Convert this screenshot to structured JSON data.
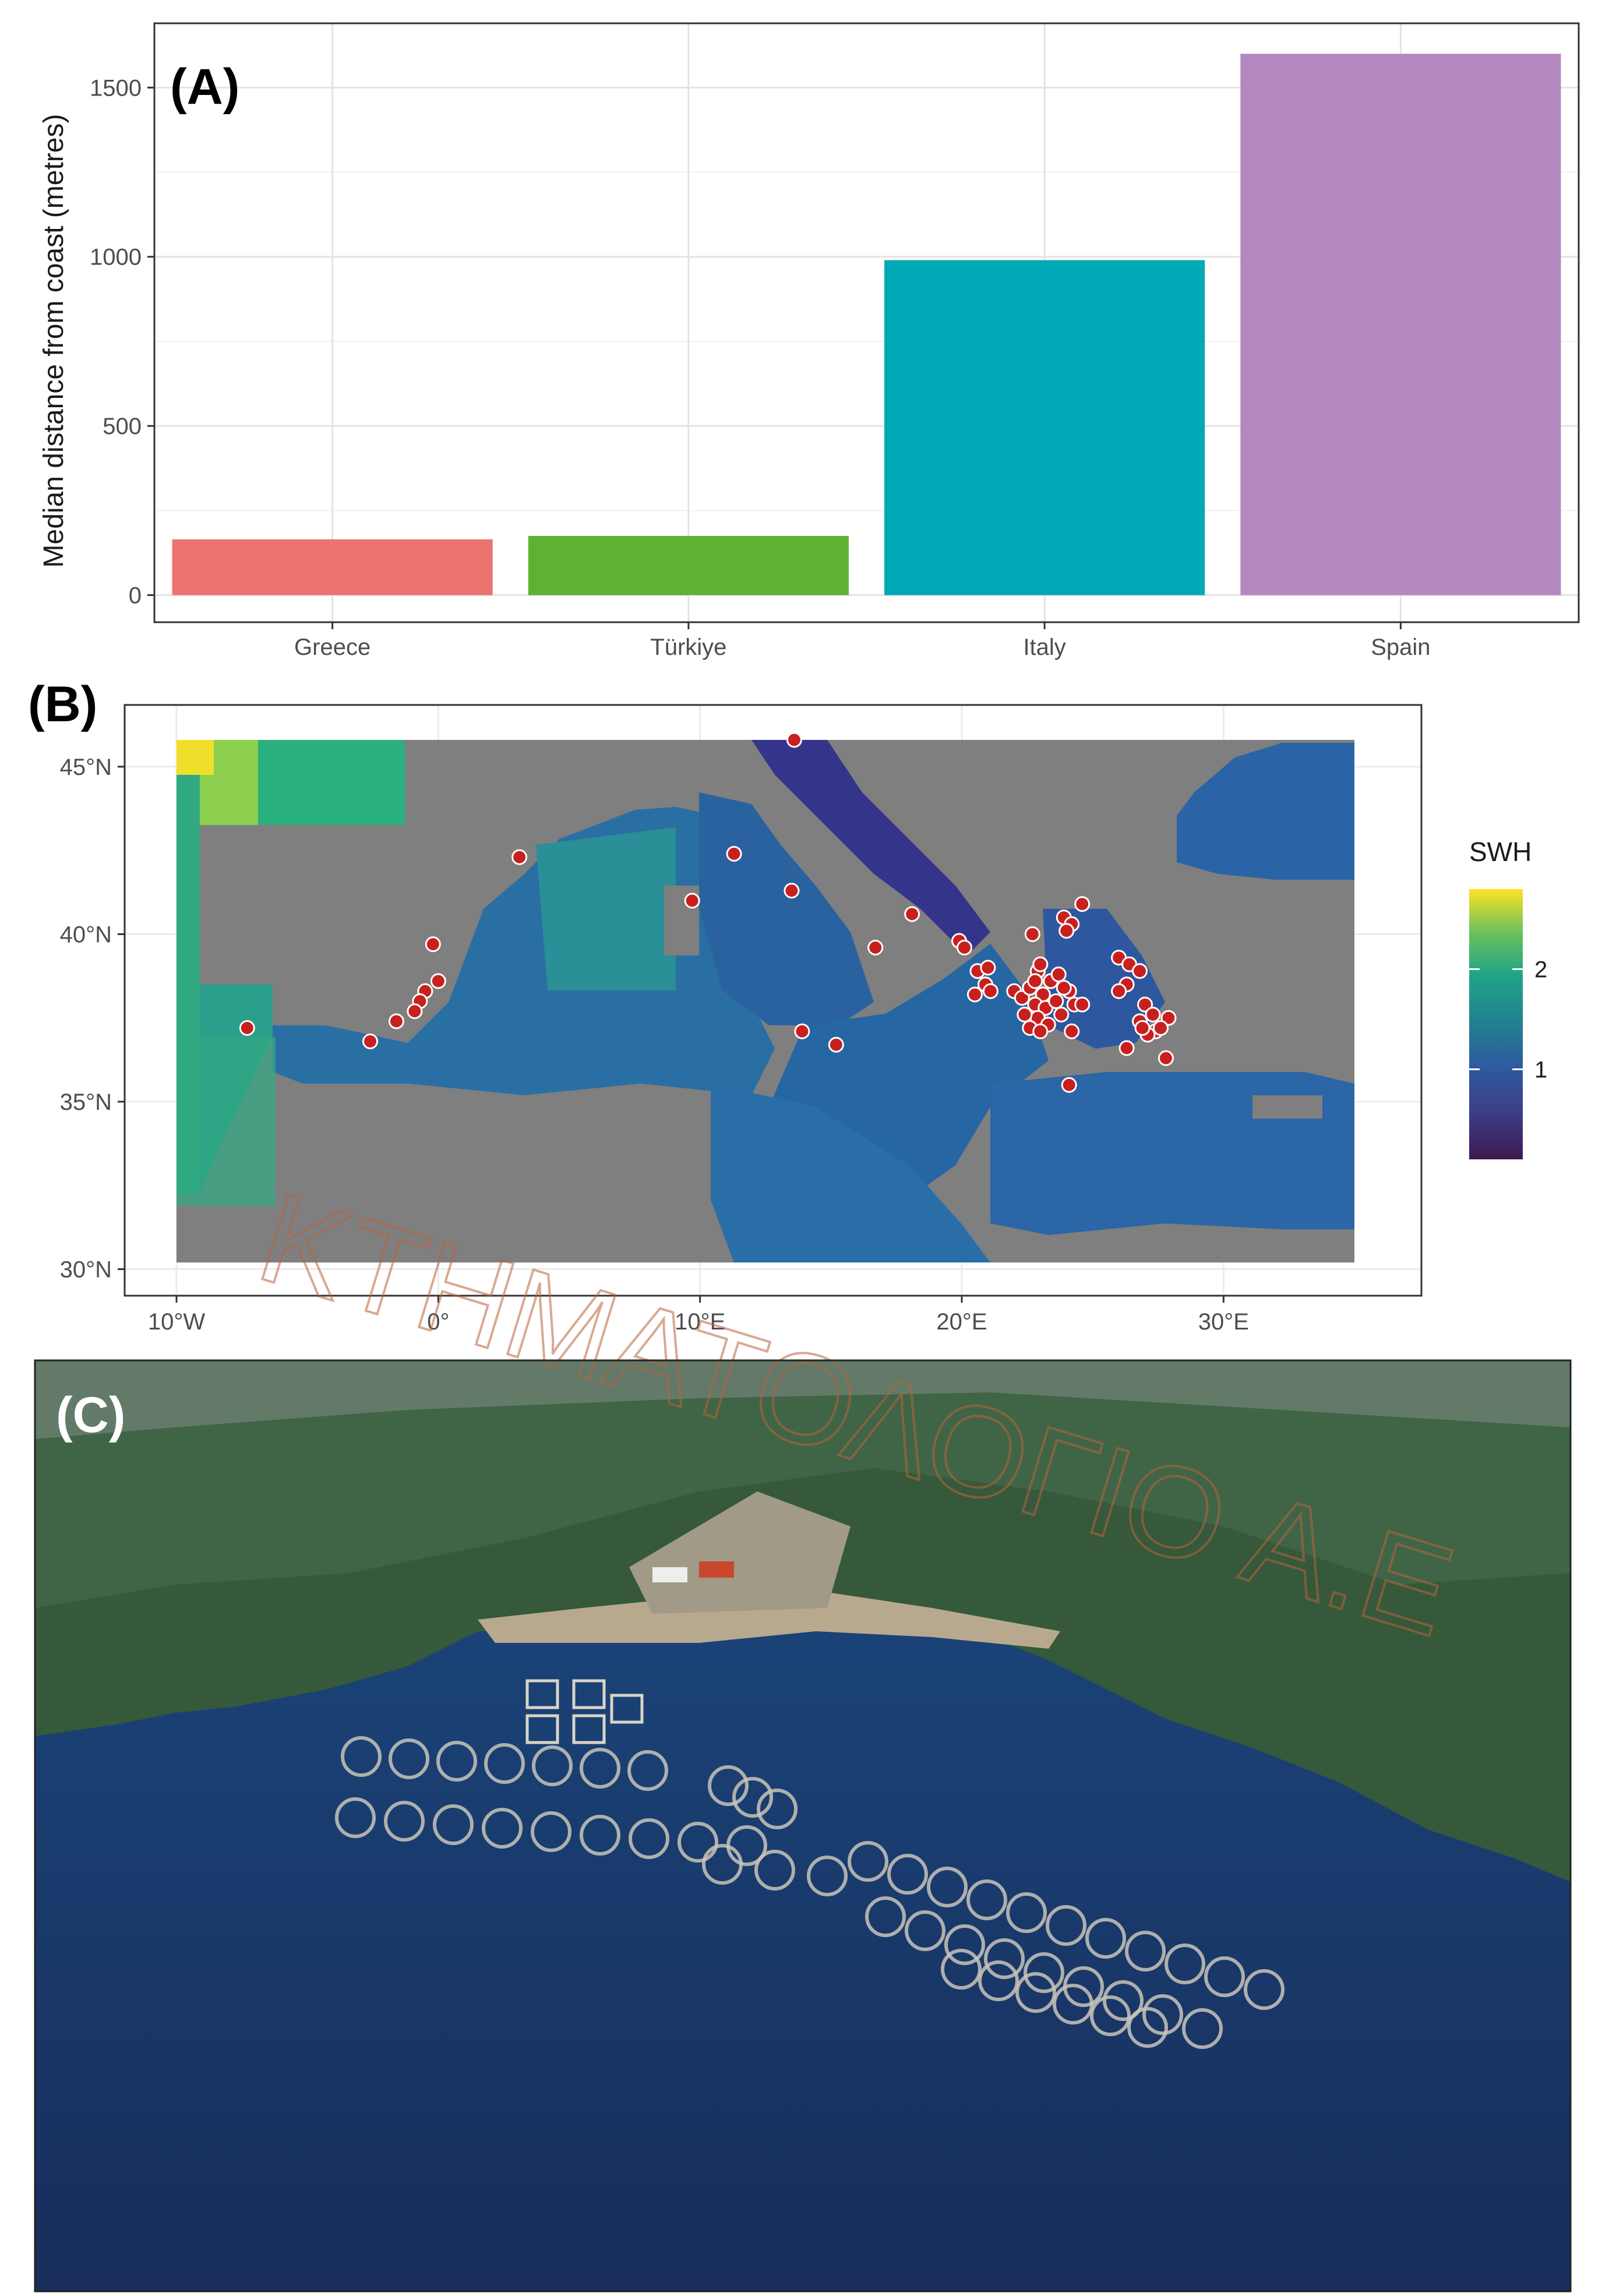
{
  "panels": {
    "a": {
      "label": "(A)"
    },
    "b": {
      "label": "(B)"
    },
    "c": {
      "label": "(C)"
    }
  },
  "chart_data": [
    {
      "type": "bar",
      "panel": "(A)",
      "categories": [
        "Greece",
        "Türkiye",
        "Italy",
        "Spain"
      ],
      "values": [
        165,
        175,
        990,
        1600
      ],
      "colors": [
        "#ec7370",
        "#5fb231",
        "#00a9b5",
        "#b388c0"
      ],
      "title": "",
      "xlabel": "",
      "ylabel": "Median distance from coast (metres)",
      "ylim": [
        -80,
        1690
      ],
      "yticks": [
        0,
        500,
        1000,
        1500
      ],
      "grid": true,
      "legend": "none"
    },
    {
      "type": "heatmap",
      "panel": "(B)",
      "description_kind": "gridded map with point overlay",
      "xlim": [
        -10,
        35
      ],
      "ylim": [
        30,
        46
      ],
      "xticks": [
        -10,
        0,
        10,
        20,
        30
      ],
      "xtick_labels": [
        "10°W",
        "0°",
        "10°E",
        "20°E",
        "30°E"
      ],
      "yticks": [
        30,
        35,
        40,
        45
      ],
      "ytick_labels": [
        "30°N",
        "35°N",
        "40°N",
        "45°N"
      ],
      "legend_title": "SWH",
      "legend_ticks": [
        1,
        2
      ],
      "legend_range": [
        0.1,
        2.8
      ],
      "legend_placement": "right",
      "land_color": "#7f7f7f",
      "point_color": "#c8201e",
      "points": [
        [
          13.6,
          45.8
        ],
        [
          3.1,
          42.3
        ],
        [
          11.3,
          42.4
        ],
        [
          13.5,
          41.3
        ],
        [
          9.7,
          41.0
        ],
        [
          18.1,
          40.6
        ],
        [
          16.7,
          39.6
        ],
        [
          -0.2,
          39.7
        ],
        [
          0.0,
          38.6
        ],
        [
          -0.5,
          38.3
        ],
        [
          -0.7,
          38.0
        ],
        [
          -0.9,
          37.7
        ],
        [
          -1.6,
          37.4
        ],
        [
          -2.6,
          36.8
        ],
        [
          -7.3,
          37.2
        ],
        [
          13.9,
          37.1
        ],
        [
          15.2,
          36.7
        ],
        [
          19.9,
          39.8
        ],
        [
          20.1,
          39.6
        ],
        [
          20.6,
          38.9
        ],
        [
          21.0,
          39.0
        ],
        [
          20.9,
          38.5
        ],
        [
          20.5,
          38.2
        ],
        [
          21.1,
          38.3
        ],
        [
          22.0,
          38.3
        ],
        [
          22.3,
          38.1
        ],
        [
          22.6,
          38.4
        ],
        [
          22.9,
          38.9
        ],
        [
          23.0,
          39.1
        ],
        [
          22.8,
          38.6
        ],
        [
          23.1,
          38.2
        ],
        [
          22.8,
          37.9
        ],
        [
          23.2,
          37.8
        ],
        [
          22.9,
          37.5
        ],
        [
          23.3,
          37.3
        ],
        [
          23.6,
          38.0
        ],
        [
          23.8,
          37.6
        ],
        [
          23.4,
          38.6
        ],
        [
          24.1,
          38.3
        ],
        [
          24.3,
          37.9
        ],
        [
          23.7,
          38.8
        ],
        [
          22.6,
          37.2
        ],
        [
          23.0,
          37.1
        ],
        [
          24.2,
          37.1
        ],
        [
          24.6,
          37.9
        ],
        [
          23.9,
          40.5
        ],
        [
          24.2,
          40.3
        ],
        [
          24.6,
          40.9
        ],
        [
          22.7,
          40.0
        ],
        [
          24.0,
          40.1
        ],
        [
          26.0,
          39.3
        ],
        [
          26.4,
          39.1
        ],
        [
          26.8,
          38.9
        ],
        [
          26.3,
          38.5
        ],
        [
          26.0,
          38.3
        ],
        [
          27.0,
          37.9
        ],
        [
          27.3,
          37.6
        ],
        [
          26.8,
          37.4
        ],
        [
          27.4,
          37.1
        ],
        [
          27.1,
          37.0
        ],
        [
          27.9,
          37.5
        ],
        [
          27.6,
          37.2
        ],
        [
          26.9,
          37.2
        ],
        [
          27.8,
          36.3
        ],
        [
          26.3,
          36.6
        ],
        [
          24.1,
          35.5
        ],
        [
          23.9,
          38.4
        ],
        [
          22.4,
          37.6
        ]
      ]
    }
  ],
  "photo": {
    "kind": "satellite image",
    "watermark": "ΚΤΗΜΑΤΟΛΟΓΙΟ Α.Ε"
  }
}
